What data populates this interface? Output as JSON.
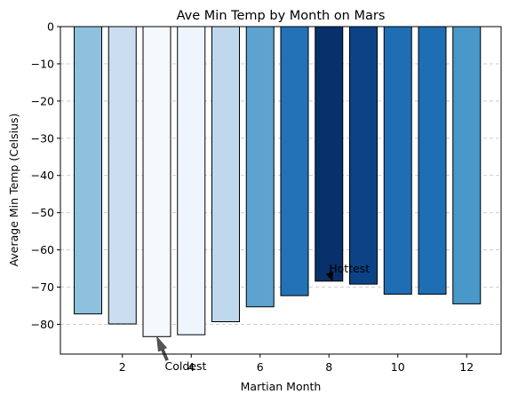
{
  "chart_data": {
    "type": "bar",
    "title": "Ave Min Temp by Month on Mars",
    "xlabel": "Martian Month",
    "ylabel": "Average Min Temp (Celsius)",
    "x": [
      1,
      2,
      3,
      4,
      5,
      6,
      7,
      8,
      9,
      10,
      11,
      12
    ],
    "values": [
      -77.2,
      -79.9,
      -83.3,
      -82.8,
      -79.3,
      -75.3,
      -72.3,
      -68.4,
      -69.2,
      -71.9,
      -71.9,
      -74.5
    ],
    "colors": [
      "#8ec1de",
      "#cadef0",
      "#f5f9fe",
      "#eef5fc",
      "#c0d8ed",
      "#5ea3d0",
      "#2272b5",
      "#08306b",
      "#0b4386",
      "#1f6eb3",
      "#1f6eb3",
      "#4a97c9"
    ],
    "xlim": [
      0.2,
      13.0
    ],
    "ylim": [
      -88,
      0
    ],
    "xticks": [
      2,
      4,
      6,
      8,
      10,
      12
    ],
    "yticks": [
      0,
      -10,
      -20,
      -30,
      -40,
      -50,
      -60,
      -70,
      -80
    ],
    "ytick_labels": [
      "0",
      "−10",
      "−20",
      "−30",
      "−40",
      "−50",
      "−60",
      "−70",
      "−80"
    ],
    "grid": "y-dashed",
    "annotations": [
      {
        "text": "Coldest",
        "x": 3,
        "y": -83.3,
        "text_x": 3.4,
        "text_y": -91.8
      },
      {
        "text": "Hottest",
        "x": 8.1,
        "y": -68.4,
        "text_x": 8.0,
        "text_y": -65.6
      }
    ]
  }
}
